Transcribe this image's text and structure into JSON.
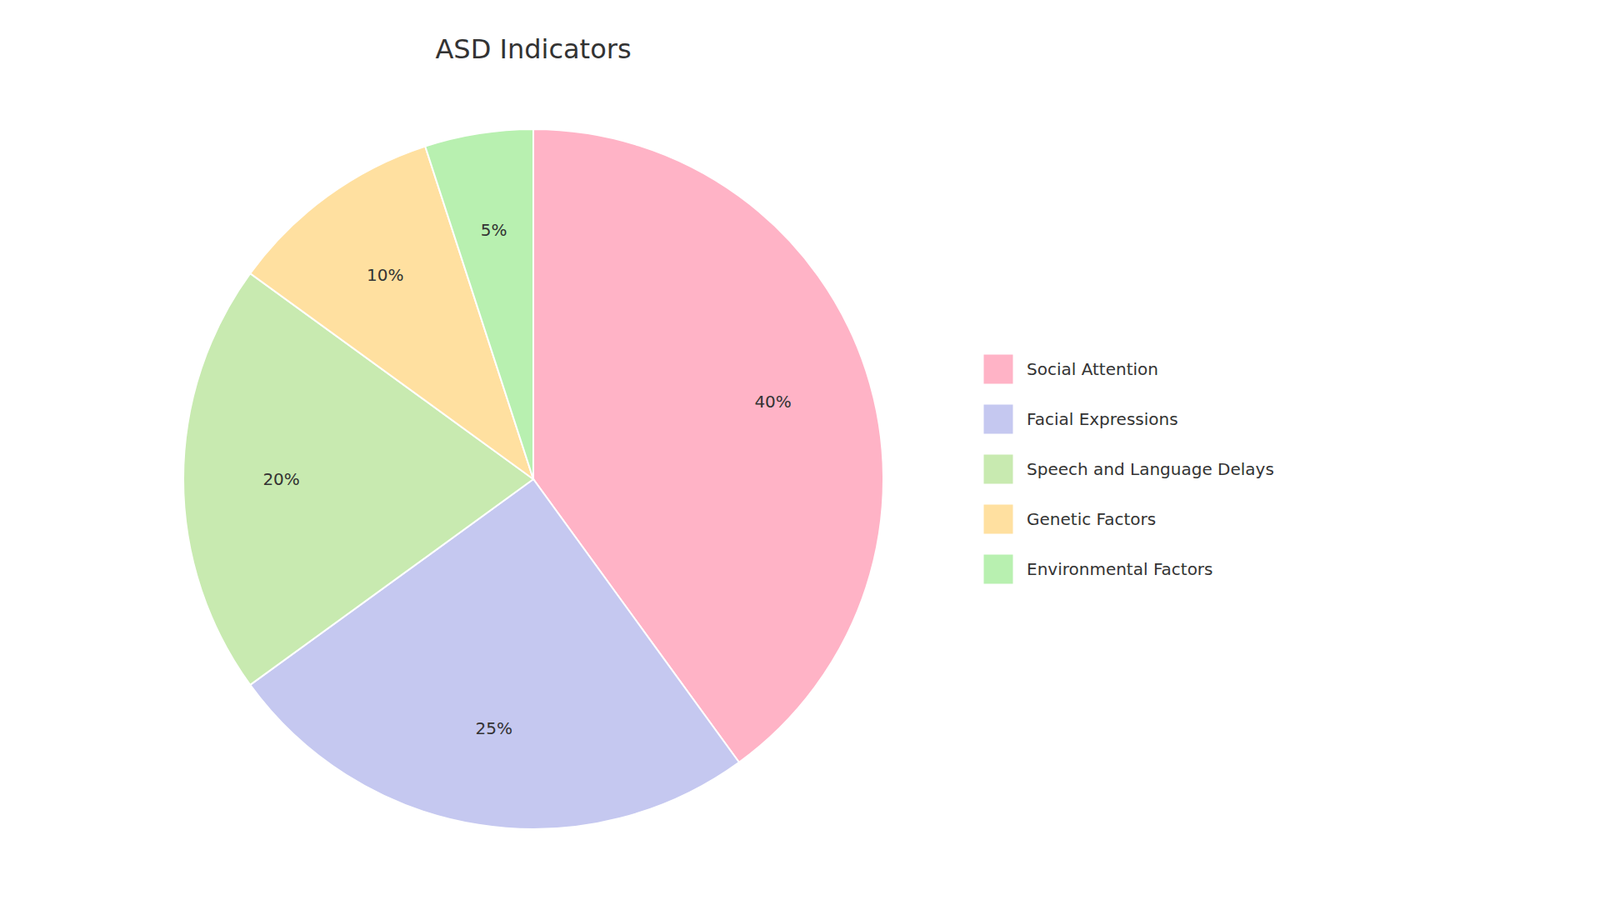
{
  "chart_data": {
    "type": "pie",
    "title": "ASD Indicators",
    "categories": [
      "Social Attention",
      "Facial Expressions",
      "Speech and Language Delays",
      "Genetic Factors",
      "Environmental Factors"
    ],
    "values": [
      40,
      25,
      20,
      10,
      5
    ],
    "value_labels": [
      "40%",
      "25%",
      "20%",
      "10%",
      "5%"
    ],
    "colors": [
      "#FFB3C6",
      "#C5C8F0",
      "#C8EAB0",
      "#FFE0A0",
      "#B8F0B0"
    ],
    "data_labels": true,
    "legend": "right"
  }
}
